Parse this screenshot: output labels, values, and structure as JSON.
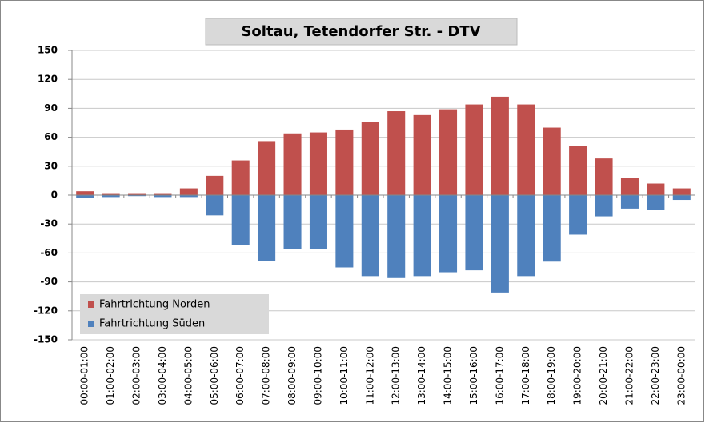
{
  "chart_data": {
    "type": "bar",
    "title": "Soltau, Tetendorfer Str. - DTV",
    "categories": [
      "00:00-01:00",
      "01:00-02:00",
      "02:00-03:00",
      "03:00-04:00",
      "04:00-05:00",
      "05:00-06:00",
      "06:00-07:00",
      "07:00-08:00",
      "08:00-09:00",
      "09:00-10:00",
      "10:00-11:00",
      "11:00-12:00",
      "12:00-13:00",
      "13:00-14:00",
      "14:00-15:00",
      "15:00-16:00",
      "16:00-17:00",
      "17:00-18:00",
      "18:00-19:00",
      "19:00-20:00",
      "20:00-21:00",
      "21:00-22:00",
      "22:00-23:00",
      "23:00-00:00"
    ],
    "series": [
      {
        "name": "Fahrtrichtung Norden",
        "color": "#c0504d",
        "values": [
          4,
          2,
          2,
          2,
          7,
          20,
          36,
          56,
          64,
          65,
          68,
          76,
          87,
          83,
          89,
          94,
          102,
          94,
          70,
          51,
          38,
          18,
          12,
          7
        ]
      },
      {
        "name": "Fahrtrichtung Süden",
        "color": "#4f81bd",
        "values": [
          -3,
          -2,
          -1,
          -2,
          -2,
          -21,
          -52,
          -68,
          -56,
          -56,
          -75,
          -84,
          -86,
          -84,
          -80,
          -78,
          -101,
          -84,
          -69,
          -41,
          -22,
          -14,
          -15,
          -5
        ]
      }
    ],
    "ylim": [
      -150,
      150
    ],
    "yticks": [
      -150,
      -120,
      -90,
      -60,
      -30,
      0,
      30,
      60,
      90,
      120,
      150
    ],
    "grid": true,
    "legend": "lower left"
  }
}
